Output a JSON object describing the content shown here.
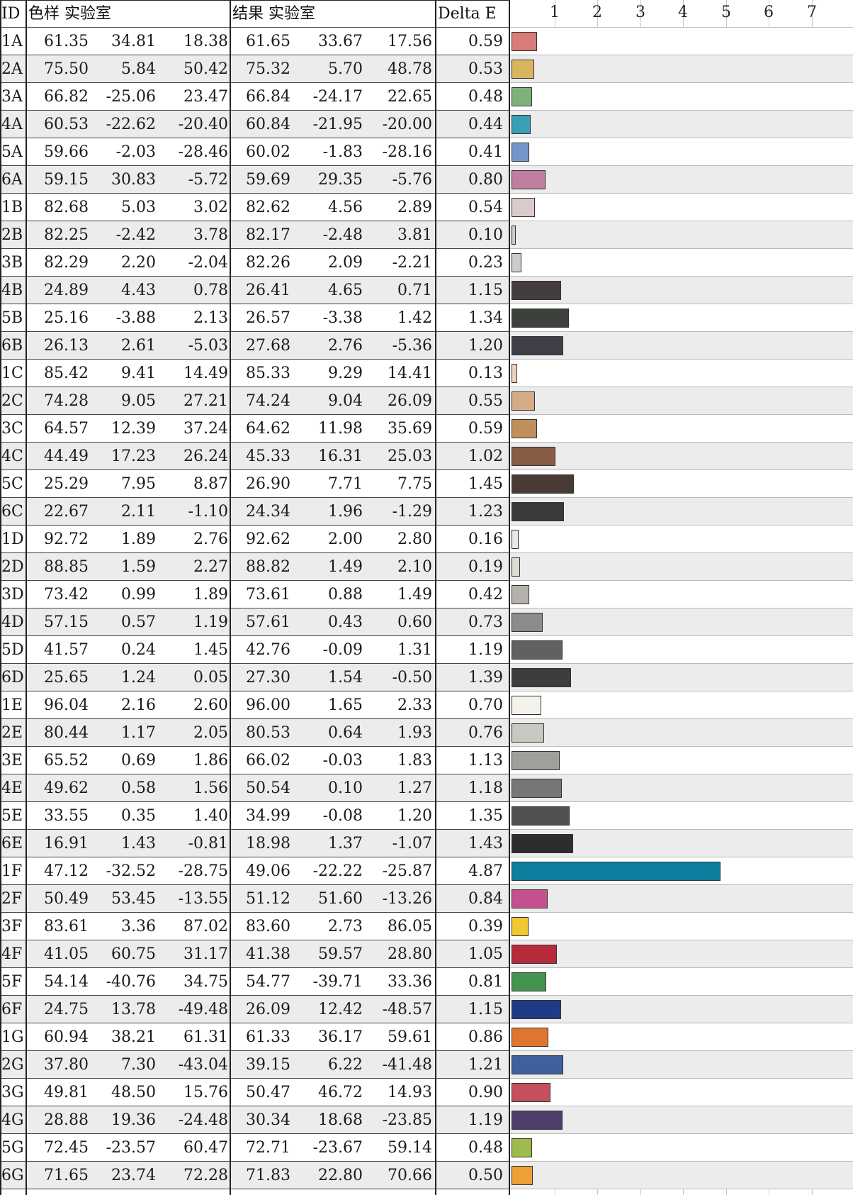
{
  "header": {
    "id": "ID",
    "sample_lab": "色样 实验室",
    "result_lab": "结果 实验室",
    "delta_e": "Delta E"
  },
  "axis_ticks": [
    "1",
    "2",
    "3",
    "4",
    "5",
    "6",
    "7"
  ],
  "rows": [
    {
      "id": "1A",
      "s": [
        "61.35",
        "34.81",
        "18.38"
      ],
      "r": [
        "61.65",
        "33.67",
        "17.56"
      ],
      "de": "0.59",
      "color": "#d97b78"
    },
    {
      "id": "2A",
      "s": [
        "75.50",
        "5.84",
        "50.42"
      ],
      "r": [
        "75.32",
        "5.70",
        "48.78"
      ],
      "de": "0.53",
      "color": "#d9b561"
    },
    {
      "id": "3A",
      "s": [
        "66.82",
        "-25.06",
        "23.47"
      ],
      "r": [
        "66.84",
        "-24.17",
        "22.65"
      ],
      "de": "0.48",
      "color": "#7eb27a"
    },
    {
      "id": "4A",
      "s": [
        "60.53",
        "-22.62",
        "-20.40"
      ],
      "r": [
        "60.84",
        "-21.95",
        "-20.00"
      ],
      "de": "0.44",
      "color": "#3a9fb2"
    },
    {
      "id": "5A",
      "s": [
        "59.66",
        "-2.03",
        "-28.46"
      ],
      "r": [
        "60.02",
        "-1.83",
        "-28.16"
      ],
      "de": "0.41",
      "color": "#7395c9"
    },
    {
      "id": "6A",
      "s": [
        "59.15",
        "30.83",
        "-5.72"
      ],
      "r": [
        "59.69",
        "29.35",
        "-5.76"
      ],
      "de": "0.80",
      "color": "#c07e9e"
    },
    {
      "id": "1B",
      "s": [
        "82.68",
        "5.03",
        "3.02"
      ],
      "r": [
        "82.62",
        "4.56",
        "2.89"
      ],
      "de": "0.54",
      "color": "#d9cacb"
    },
    {
      "id": "2B",
      "s": [
        "82.25",
        "-2.42",
        "3.78"
      ],
      "r": [
        "82.17",
        "-2.48",
        "3.81"
      ],
      "de": "0.10",
      "color": "#ccccc4"
    },
    {
      "id": "3B",
      "s": [
        "82.29",
        "2.20",
        "-2.04"
      ],
      "r": [
        "82.26",
        "2.09",
        "-2.21"
      ],
      "de": "0.23",
      "color": "#cccacf"
    },
    {
      "id": "4B",
      "s": [
        "24.89",
        "4.43",
        "0.78"
      ],
      "r": [
        "26.41",
        "4.65",
        "0.71"
      ],
      "de": "1.15",
      "color": "#433d3d"
    },
    {
      "id": "5B",
      "s": [
        "25.16",
        "-3.88",
        "2.13"
      ],
      "r": [
        "26.57",
        "-3.38",
        "1.42"
      ],
      "de": "1.34",
      "color": "#3c413c"
    },
    {
      "id": "6B",
      "s": [
        "26.13",
        "2.61",
        "-5.03"
      ],
      "r": [
        "27.68",
        "2.76",
        "-5.36"
      ],
      "de": "1.20",
      "color": "#3f3f4a"
    },
    {
      "id": "1C",
      "s": [
        "85.42",
        "9.41",
        "14.49"
      ],
      "r": [
        "85.33",
        "9.29",
        "14.41"
      ],
      "de": "0.13",
      "color": "#efd0bd"
    },
    {
      "id": "2C",
      "s": [
        "74.28",
        "9.05",
        "27.21"
      ],
      "r": [
        "74.24",
        "9.04",
        "26.09"
      ],
      "de": "0.55",
      "color": "#d4ad88"
    },
    {
      "id": "3C",
      "s": [
        "64.57",
        "12.39",
        "37.24"
      ],
      "r": [
        "64.62",
        "11.98",
        "35.69"
      ],
      "de": "0.59",
      "color": "#c08f5c"
    },
    {
      "id": "4C",
      "s": [
        "44.49",
        "17.23",
        "26.24"
      ],
      "r": [
        "45.33",
        "16.31",
        "25.03"
      ],
      "de": "1.02",
      "color": "#875c42"
    },
    {
      "id": "5C",
      "s": [
        "25.29",
        "7.95",
        "8.87"
      ],
      "r": [
        "26.90",
        "7.71",
        "7.75"
      ],
      "de": "1.45",
      "color": "#4a3a35"
    },
    {
      "id": "6C",
      "s": [
        "22.67",
        "2.11",
        "-1.10"
      ],
      "r": [
        "24.34",
        "1.96",
        "-1.29"
      ],
      "de": "1.23",
      "color": "#3a3a3d"
    },
    {
      "id": "1D",
      "s": [
        "92.72",
        "1.89",
        "2.76"
      ],
      "r": [
        "92.62",
        "2.00",
        "2.80"
      ],
      "de": "0.16",
      "color": "#ece6e2"
    },
    {
      "id": "2D",
      "s": [
        "88.85",
        "1.59",
        "2.27"
      ],
      "r": [
        "88.82",
        "1.49",
        "2.10"
      ],
      "de": "0.19",
      "color": "#dedad6"
    },
    {
      "id": "3D",
      "s": [
        "73.42",
        "0.99",
        "1.89"
      ],
      "r": [
        "73.61",
        "0.88",
        "1.49"
      ],
      "de": "0.42",
      "color": "#b5b2ae"
    },
    {
      "id": "4D",
      "s": [
        "57.15",
        "0.57",
        "1.19"
      ],
      "r": [
        "57.61",
        "0.43",
        "0.60"
      ],
      "de": "0.73",
      "color": "#8c8b89"
    },
    {
      "id": "5D",
      "s": [
        "41.57",
        "0.24",
        "1.45"
      ],
      "r": [
        "42.76",
        "-0.09",
        "1.31"
      ],
      "de": "1.19",
      "color": "#62615f"
    },
    {
      "id": "6D",
      "s": [
        "25.65",
        "1.24",
        "0.05"
      ],
      "r": [
        "27.30",
        "1.54",
        "-0.50"
      ],
      "de": "1.39",
      "color": "#3e3d3d"
    },
    {
      "id": "1E",
      "s": [
        "96.04",
        "2.16",
        "2.60"
      ],
      "r": [
        "96.00",
        "1.65",
        "2.33"
      ],
      "de": "0.70",
      "color": "#f5f1ec"
    },
    {
      "id": "2E",
      "s": [
        "80.44",
        "1.17",
        "2.05"
      ],
      "r": [
        "80.53",
        "0.64",
        "1.93"
      ],
      "de": "0.76",
      "color": "#c9c7c2"
    },
    {
      "id": "3E",
      "s": [
        "65.52",
        "0.69",
        "1.86"
      ],
      "r": [
        "66.02",
        "-0.03",
        "1.83"
      ],
      "de": "1.13",
      "color": "#a09f9b"
    },
    {
      "id": "4E",
      "s": [
        "49.62",
        "0.58",
        "1.56"
      ],
      "r": [
        "50.54",
        "0.10",
        "1.27"
      ],
      "de": "1.18",
      "color": "#787775"
    },
    {
      "id": "5E",
      "s": [
        "33.55",
        "0.35",
        "1.40"
      ],
      "r": [
        "34.99",
        "-0.08",
        "1.20"
      ],
      "de": "1.35",
      "color": "#51504f"
    },
    {
      "id": "6E",
      "s": [
        "16.91",
        "1.43",
        "-0.81"
      ],
      "r": [
        "18.98",
        "1.37",
        "-1.07"
      ],
      "de": "1.43",
      "color": "#2d2c2e"
    },
    {
      "id": "1F",
      "s": [
        "47.12",
        "-32.52",
        "-28.75"
      ],
      "r": [
        "49.06",
        "-22.22",
        "-25.87"
      ],
      "de": "4.87",
      "color": "#0e7e9e"
    },
    {
      "id": "2F",
      "s": [
        "50.49",
        "53.45",
        "-13.55"
      ],
      "r": [
        "51.12",
        "51.60",
        "-13.26"
      ],
      "de": "0.84",
      "color": "#c4508f"
    },
    {
      "id": "3F",
      "s": [
        "83.61",
        "3.36",
        "87.02"
      ],
      "r": [
        "83.60",
        "2.73",
        "86.05"
      ],
      "de": "0.39",
      "color": "#f0c832"
    },
    {
      "id": "4F",
      "s": [
        "41.05",
        "60.75",
        "31.17"
      ],
      "r": [
        "41.38",
        "59.57",
        "28.80"
      ],
      "de": "1.05",
      "color": "#b72a3a"
    },
    {
      "id": "5F",
      "s": [
        "54.14",
        "-40.76",
        "34.75"
      ],
      "r": [
        "54.77",
        "-39.71",
        "33.36"
      ],
      "de": "0.81",
      "color": "#44944f"
    },
    {
      "id": "6F",
      "s": [
        "24.75",
        "13.78",
        "-49.48"
      ],
      "r": [
        "26.09",
        "12.42",
        "-48.57"
      ],
      "de": "1.15",
      "color": "#1e3c86"
    },
    {
      "id": "1G",
      "s": [
        "60.94",
        "38.21",
        "61.31"
      ],
      "r": [
        "61.33",
        "36.17",
        "59.61"
      ],
      "de": "0.86",
      "color": "#de7630"
    },
    {
      "id": "2G",
      "s": [
        "37.80",
        "7.30",
        "-43.04"
      ],
      "r": [
        "39.15",
        "6.22",
        "-41.48"
      ],
      "de": "1.21",
      "color": "#3f5f9e"
    },
    {
      "id": "3G",
      "s": [
        "49.81",
        "48.50",
        "15.76"
      ],
      "r": [
        "50.47",
        "46.72",
        "14.93"
      ],
      "de": "0.90",
      "color": "#c4505e"
    },
    {
      "id": "4G",
      "s": [
        "28.88",
        "19.36",
        "-24.48"
      ],
      "r": [
        "30.34",
        "18.68",
        "-23.85"
      ],
      "de": "1.19",
      "color": "#4e3f6a"
    },
    {
      "id": "5G",
      "s": [
        "72.45",
        "-23.57",
        "60.47"
      ],
      "r": [
        "72.71",
        "-23.67",
        "59.14"
      ],
      "de": "0.48",
      "color": "#9fbb4e"
    },
    {
      "id": "6G",
      "s": [
        "71.65",
        "23.74",
        "72.28"
      ],
      "r": [
        "71.83",
        "22.80",
        "70.66"
      ],
      "de": "0.50",
      "color": "#eda038"
    }
  ]
}
